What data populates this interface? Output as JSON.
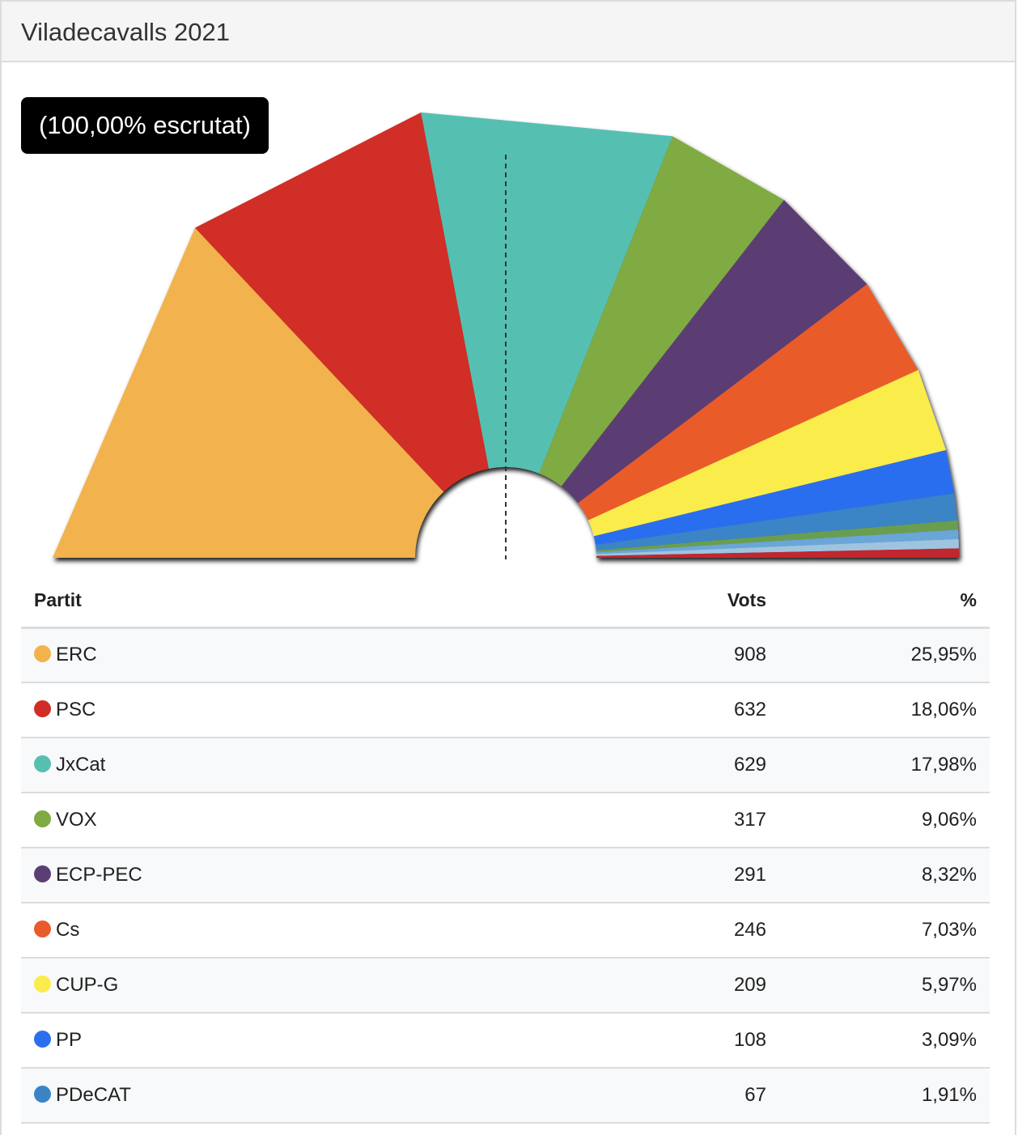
{
  "header": {
    "title": "Viladecavalls 2021"
  },
  "badge": {
    "text": "(100,00% escrutat)"
  },
  "table": {
    "headers": {
      "party": "Partit",
      "votes": "Vots",
      "pct": "%"
    }
  },
  "chart_data": {
    "type": "pie",
    "shape": "half-donut",
    "majority_line": true,
    "series": [
      {
        "name": "ERC",
        "votes": 908,
        "pct": 25.95,
        "pct_label": "25,95%",
        "color": "#f2b24e"
      },
      {
        "name": "PSC",
        "votes": 632,
        "pct": 18.06,
        "pct_label": "18,06%",
        "color": "#d02d27"
      },
      {
        "name": "JxCat",
        "votes": 629,
        "pct": 17.98,
        "pct_label": "17,98%",
        "color": "#55c0b2"
      },
      {
        "name": "VOX",
        "votes": 317,
        "pct": 9.06,
        "pct_label": "9,06%",
        "color": "#80aa42"
      },
      {
        "name": "ECP-PEC",
        "votes": 291,
        "pct": 8.32,
        "pct_label": "8,32%",
        "color": "#5b3e73"
      },
      {
        "name": "Cs",
        "votes": 246,
        "pct": 7.03,
        "pct_label": "7,03%",
        "color": "#e95b2b"
      },
      {
        "name": "CUP-G",
        "votes": 209,
        "pct": 5.97,
        "pct_label": "5,97%",
        "color": "#faec4c"
      },
      {
        "name": "PP",
        "votes": 108,
        "pct": 3.09,
        "pct_label": "3,09%",
        "color": "#2c6ef0"
      },
      {
        "name": "PDeCAT",
        "votes": 67,
        "pct": 1.91,
        "pct_label": "1,91%",
        "color": "#3a84c6"
      }
    ],
    "extra_slices_colors": [
      "#6b9e50",
      "#6aa6d8",
      "#9fc4e0",
      "#c2262f"
    ]
  }
}
